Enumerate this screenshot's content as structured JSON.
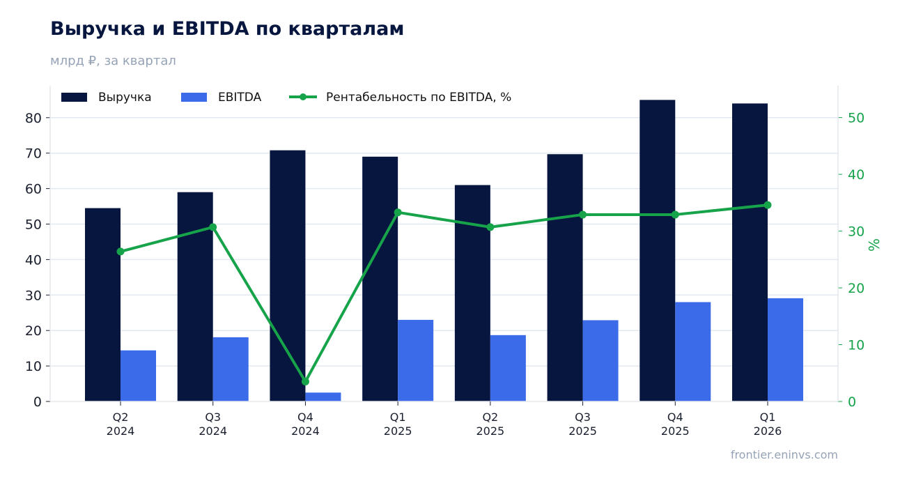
{
  "header": {
    "title": "Выручка и EBITDA по кварталам",
    "subtitle": "млрд ₽, за квартал"
  },
  "footer": {
    "source": "frontier.eninvs.com"
  },
  "chart_data": {
    "type": "bar",
    "categories": [
      [
        "Q2",
        "2024"
      ],
      [
        "Q3",
        "2024"
      ],
      [
        "Q4",
        "2024"
      ],
      [
        "Q1",
        "2025"
      ],
      [
        "Q2",
        "2025"
      ],
      [
        "Q3",
        "2025"
      ],
      [
        "Q4",
        "2025"
      ],
      [
        "Q1",
        "2026"
      ]
    ],
    "series": [
      {
        "name": "Выручка",
        "type": "bar",
        "axis": "left",
        "color": "#06163f",
        "values": [
          54.5,
          59.0,
          70.8,
          69.0,
          61.0,
          69.7,
          85.0,
          84.0
        ]
      },
      {
        "name": "EBITDA",
        "type": "bar",
        "axis": "left",
        "color": "#3b6be8",
        "values": [
          14.4,
          18.1,
          2.5,
          23.0,
          18.7,
          22.9,
          28.0,
          29.1
        ]
      },
      {
        "name": "Рентабельность по EBITDA, %",
        "type": "line",
        "axis": "right",
        "color": "#16a34a",
        "values": [
          26.4,
          30.7,
          3.5,
          33.3,
          30.7,
          32.9,
          32.9,
          34.6
        ]
      }
    ],
    "left_axis": {
      "label": "",
      "ylim": [
        0,
        89
      ],
      "ticks": [
        0,
        10,
        20,
        30,
        40,
        50,
        60,
        70,
        80
      ]
    },
    "right_axis": {
      "label": "%",
      "ylim": [
        0,
        55.6
      ],
      "ticks": [
        0,
        10,
        20,
        30,
        40,
        50
      ]
    },
    "grid": true,
    "legend_position": "top-left"
  }
}
